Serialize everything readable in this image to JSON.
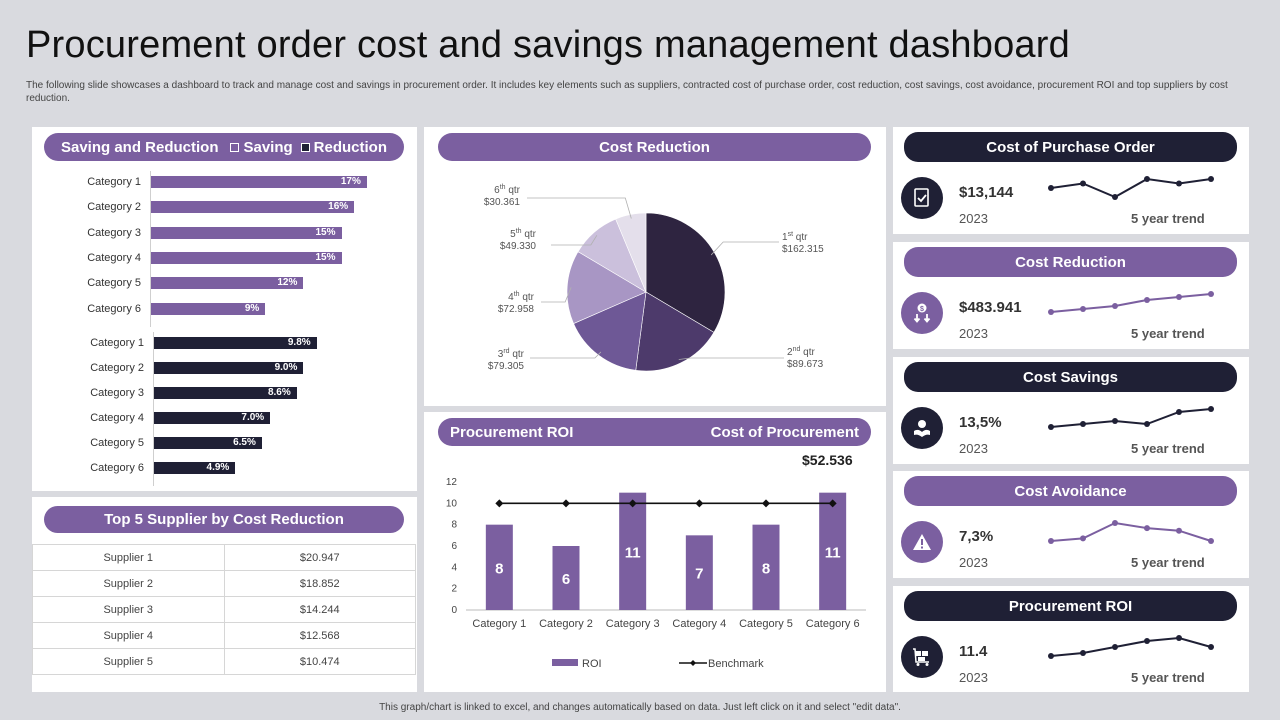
{
  "header": {
    "title": "Procurement order cost and savings management dashboard",
    "subtitle": "The following slide showcases a dashboard to track and manage cost and savings in procurement order. It includes key elements such as suppliers, contracted cost of purchase order, cost reduction, cost savings, cost avoidance, procurement ROI and top suppliers by cost reduction."
  },
  "footer": "This graph/chart is linked to excel, and changes automatically based on data. Just left click on it and select \"edit data\".",
  "colors": {
    "purple": "#7b5fa0",
    "dark": "#1f2035",
    "background": "#d9dadf"
  },
  "saving_reduction": {
    "title": "Saving and Reduction",
    "legend_saving": "Saving",
    "legend_reduction": "Reduction"
  },
  "top_suppliers": {
    "title": "Top 5 Supplier by Cost Reduction",
    "rows": [
      {
        "name": "Supplier 1",
        "value": "$20.947"
      },
      {
        "name": "Supplier 2",
        "value": "$18.852"
      },
      {
        "name": "Supplier 3",
        "value": "$14.244"
      },
      {
        "name": "Supplier 4",
        "value": "$12.568"
      },
      {
        "name": "Supplier 5",
        "value": "$10.474"
      }
    ]
  },
  "cost_reduction_panel": {
    "title": "Cost Reduction"
  },
  "roi_panel": {
    "title_left": "Procurement ROI",
    "title_right": "Cost of Procurement",
    "total": "$52.536"
  },
  "kpis": [
    {
      "title": "Cost of Purchase Order",
      "value": "$13,144",
      "year": "2023",
      "trend_label": "5 year trend",
      "icon": "document-check-icon",
      "style": "dark",
      "trend": [
        5,
        6,
        3,
        7,
        6,
        7
      ]
    },
    {
      "title": "Cost Reduction",
      "value": "$483.941",
      "year": "2023",
      "trend_label": "5 year trend",
      "icon": "money-down-icon",
      "style": "purple",
      "trend": [
        2,
        3,
        4,
        6,
        7,
        8
      ]
    },
    {
      "title": "Cost Savings",
      "value": "13,5%",
      "year": "2023",
      "trend_label": "5 year trend",
      "icon": "hand-money-icon",
      "style": "dark",
      "trend": [
        2,
        3,
        4,
        3,
        7,
        8
      ]
    },
    {
      "title": "Cost Avoidance",
      "value": "7,3%",
      "year": "2023",
      "trend_label": "5 year trend",
      "icon": "warning-icon",
      "style": "purple",
      "trend": [
        2,
        3,
        9,
        7,
        6,
        2
      ]
    },
    {
      "title": "Procurement ROI",
      "value": "11.4",
      "year": "2023",
      "trend_label": "5 year trend",
      "icon": "cart-boxes-icon",
      "style": "dark",
      "trend": [
        2,
        3,
        5,
        7,
        8,
        5
      ]
    }
  ],
  "chart_data": [
    {
      "type": "bar",
      "orientation": "horizontal",
      "title": "Saving",
      "categories": [
        "Category 1",
        "Category 2",
        "Category 3",
        "Category 4",
        "Category 5",
        "Category 6"
      ],
      "values": [
        17,
        16,
        15,
        15,
        12,
        9
      ],
      "labels": [
        "17%",
        "16%",
        "15%",
        "15%",
        "12%",
        "9%"
      ]
    },
    {
      "type": "bar",
      "orientation": "horizontal",
      "title": "Reduction",
      "categories": [
        "Category 1",
        "Category 2",
        "Category 3",
        "Category 4",
        "Category 5",
        "Category 6"
      ],
      "values": [
        9.8,
        9.0,
        8.6,
        7.0,
        6.5,
        4.9
      ],
      "labels": [
        "9.8%",
        "9.0%",
        "8.6%",
        "7.0%",
        "6.5%",
        "4.9%"
      ]
    },
    {
      "type": "pie",
      "title": "Cost Reduction",
      "slices": [
        {
          "sup": "st",
          "num": "1",
          "rest": " qtr",
          "value": 162.315,
          "label": "$162.315",
          "color": "#2e2440"
        },
        {
          "sup": "nd",
          "num": "2",
          "rest": " qtr",
          "value": 89.673,
          "label": "$89.673",
          "color": "#4d3a6b"
        },
        {
          "sup": "rd",
          "num": "3",
          "rest": " qtr",
          "value": 79.305,
          "label": "$79.305",
          "color": "#6e5896"
        },
        {
          "sup": "th",
          "num": "4",
          "rest": " qtr",
          "value": 72.958,
          "label": "$72.958",
          "color": "#a896c4"
        },
        {
          "sup": "th",
          "num": "5",
          "rest": " qtr",
          "value": 49.33,
          "label": "$49.330",
          "color": "#cbc0dc"
        },
        {
          "sup": "th",
          "num": "6",
          "rest": " qtr",
          "value": 30.361,
          "label": "$30.361",
          "color": "#e4dfeb"
        }
      ]
    },
    {
      "type": "bar",
      "title": "Procurement ROI",
      "categories": [
        "Category 1",
        "Category 2",
        "Category 3",
        "Category 4",
        "Category 5",
        "Category 6"
      ],
      "series": [
        {
          "name": "ROI",
          "values": [
            8,
            6,
            11,
            7,
            8,
            11
          ],
          "kind": "bar"
        },
        {
          "name": "Benchmark",
          "values": [
            10,
            10,
            10,
            10,
            10,
            10
          ],
          "kind": "line"
        }
      ],
      "ylim": [
        0,
        12
      ],
      "yticks": [
        0,
        2,
        4,
        6,
        8,
        10,
        12
      ],
      "legend": "bottom"
    }
  ]
}
